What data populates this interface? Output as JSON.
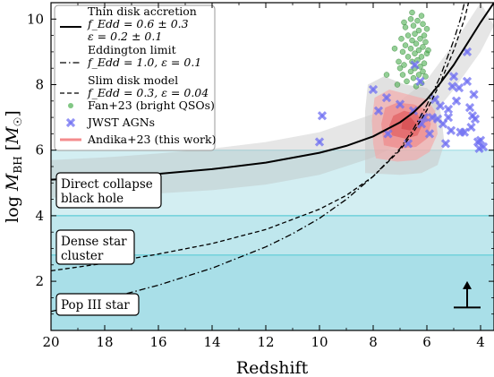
{
  "chart_data": {
    "type": "line",
    "xlabel": "Redshift",
    "ylabel": "log M_BH [M_☉]",
    "xlim": [
      20,
      3.5
    ],
    "ylim": [
      0.5,
      10.5
    ],
    "x_ticks": [
      20,
      18,
      16,
      14,
      12,
      10,
      8,
      6,
      4
    ],
    "y_ticks": [
      2,
      4,
      6,
      8,
      10
    ],
    "grid": false,
    "legend_position": "top-left",
    "legend": [
      {
        "key": "thin",
        "label": "Thin disk accretion",
        "line2": "f_Edd = 0.6 ± 0.3",
        "line3": "ε = 0.2 ± 0.1",
        "style": "solid"
      },
      {
        "key": "edd",
        "label": "Eddington limit",
        "line2": "f_Edd = 1.0, ε = 0.1",
        "style": "dashdot"
      },
      {
        "key": "slim",
        "label": "Slim disk model",
        "line2": "f_Edd = 0.3, ε = 0.04",
        "style": "dashed"
      },
      {
        "key": "fan",
        "label": "Fan+23 (bright QSOs)",
        "style": "green-dot"
      },
      {
        "key": "jwst",
        "label": "JWST AGNs",
        "style": "blue-cross"
      },
      {
        "key": "andika",
        "label": "Andika+23 (this work)",
        "style": "red-band"
      }
    ],
    "seed_regions": [
      {
        "label": "Direct collapse black hole",
        "line1": "Direct collapse",
        "line2": "black hole",
        "y_range": [
          4,
          6
        ],
        "color": "#d3eef2"
      },
      {
        "label": "Dense star cluster",
        "line1": "Dense star",
        "line2": "cluster",
        "y_range": [
          2.8,
          4
        ],
        "color": "#bfe7ed"
      },
      {
        "label": "Pop III star",
        "line1": "Pop III star",
        "line2": "",
        "y_range": [
          0.5,
          2.8
        ],
        "color": "#a9dfe8"
      }
    ],
    "series": [
      {
        "name": "Thin disk accretion",
        "style": "solid",
        "points": [
          [
            20,
            5.1
          ],
          [
            18,
            5.18
          ],
          [
            16,
            5.28
          ],
          [
            14,
            5.42
          ],
          [
            12,
            5.62
          ],
          [
            10,
            5.92
          ],
          [
            9,
            6.13
          ],
          [
            8,
            6.42
          ],
          [
            7,
            6.85
          ],
          [
            6.5,
            7.15
          ],
          [
            6,
            7.55
          ],
          [
            5.5,
            8.05
          ],
          [
            5,
            8.6
          ],
          [
            4.5,
            9.25
          ],
          [
            4,
            9.9
          ],
          [
            3.5,
            10.5
          ]
        ]
      },
      {
        "name": "Eddington limit",
        "style": "dashdot",
        "points": [
          [
            20,
            1.08
          ],
          [
            18,
            1.45
          ],
          [
            16,
            1.88
          ],
          [
            14,
            2.4
          ],
          [
            12,
            3.05
          ],
          [
            11,
            3.45
          ],
          [
            10,
            3.92
          ],
          [
            9,
            4.5
          ],
          [
            8,
            5.2
          ],
          [
            7,
            6.05
          ],
          [
            6.5,
            6.65
          ],
          [
            6,
            7.38
          ],
          [
            5.5,
            8.25
          ],
          [
            5,
            9.35
          ],
          [
            4.75,
            10.0
          ],
          [
            4.6,
            10.5
          ]
        ]
      },
      {
        "name": "Slim disk model",
        "style": "dashed",
        "points": [
          [
            20,
            2.32
          ],
          [
            18,
            2.55
          ],
          [
            16,
            2.83
          ],
          [
            14,
            3.15
          ],
          [
            12,
            3.58
          ],
          [
            10,
            4.2
          ],
          [
            9,
            4.62
          ],
          [
            8,
            5.2
          ],
          [
            7,
            6.0
          ],
          [
            6.5,
            6.55
          ],
          [
            6,
            7.22
          ],
          [
            5.5,
            8.05
          ],
          [
            5,
            9.05
          ],
          [
            4.6,
            10.0
          ],
          [
            4.45,
            10.5
          ]
        ]
      }
    ],
    "thin_band": {
      "upper": [
        [
          20,
          5.7
        ],
        [
          18,
          5.78
        ],
        [
          16,
          5.9
        ],
        [
          14,
          6.05
        ],
        [
          12,
          6.25
        ],
        [
          10,
          6.55
        ],
        [
          8,
          7.1
        ],
        [
          7,
          7.5
        ],
        [
          6,
          8.15
        ],
        [
          5,
          9.25
        ],
        [
          4,
          10.5
        ]
      ],
      "lower": [
        [
          20,
          4.55
        ],
        [
          18,
          4.6
        ],
        [
          16,
          4.68
        ],
        [
          14,
          4.78
        ],
        [
          12,
          4.95
        ],
        [
          10,
          5.25
        ],
        [
          8,
          5.78
        ],
        [
          7,
          6.2
        ],
        [
          6,
          6.85
        ],
        [
          5,
          7.85
        ],
        [
          4,
          9.0
        ],
        [
          3.5,
          9.8
        ]
      ]
    },
    "fan_points": [
      [
        6.2,
        10.1
      ],
      [
        6.35,
        9.95
      ],
      [
        6.6,
        10.0
      ],
      [
        6.15,
        9.85
      ],
      [
        6.5,
        9.8
      ],
      [
        6.8,
        9.75
      ],
      [
        6.3,
        9.65
      ],
      [
        6.45,
        9.55
      ],
      [
        6.1,
        9.5
      ],
      [
        6.7,
        9.5
      ],
      [
        6.25,
        9.4
      ],
      [
        6.55,
        9.35
      ],
      [
        6.05,
        9.3
      ],
      [
        6.4,
        9.25
      ],
      [
        6.8,
        9.2
      ],
      [
        6.15,
        9.15
      ],
      [
        6.6,
        9.1
      ],
      [
        6.3,
        9.05
      ],
      [
        6.9,
        9.0
      ],
      [
        6.45,
        8.95
      ],
      [
        6.0,
        8.95
      ],
      [
        6.2,
        8.85
      ],
      [
        6.7,
        8.85
      ],
      [
        6.35,
        8.75
      ],
      [
        6.55,
        8.7
      ],
      [
        6.1,
        8.65
      ],
      [
        6.85,
        8.6
      ],
      [
        6.25,
        8.55
      ],
      [
        6.45,
        8.5
      ],
      [
        7.0,
        8.5
      ],
      [
        6.15,
        8.4
      ],
      [
        6.6,
        8.4
      ],
      [
        6.3,
        8.3
      ],
      [
        6.9,
        8.3
      ],
      [
        6.05,
        8.25
      ],
      [
        6.5,
        8.2
      ],
      [
        6.75,
        8.1
      ],
      [
        6.2,
        8.05
      ],
      [
        7.1,
        8.0
      ],
      [
        6.4,
        7.95
      ],
      [
        6.95,
        9.4
      ],
      [
        7.2,
        9.1
      ],
      [
        6.0,
        9.7
      ],
      [
        7.05,
        8.7
      ],
      [
        7.5,
        8.3
      ],
      [
        6.55,
        10.2
      ],
      [
        5.95,
        9.05
      ],
      [
        6.85,
        9.9
      ]
    ],
    "jwst_points": [
      [
        9.9,
        7.05
      ],
      [
        10.0,
        6.25
      ],
      [
        6.45,
        8.6
      ],
      [
        6.25,
        8.1
      ],
      [
        7.0,
        7.4
      ],
      [
        6.5,
        7.2
      ],
      [
        6.1,
        7.0
      ],
      [
        5.8,
        7.0
      ],
      [
        5.6,
        6.95
      ],
      [
        5.4,
        6.8
      ],
      [
        5.2,
        7.0
      ],
      [
        4.9,
        7.5
      ],
      [
        4.75,
        6.55
      ],
      [
        4.6,
        6.55
      ],
      [
        4.4,
        7.3
      ],
      [
        4.3,
        7.05
      ],
      [
        4.2,
        6.95
      ],
      [
        4.1,
        6.25
      ],
      [
        4.0,
        6.3
      ],
      [
        4.5,
        8.1
      ],
      [
        4.5,
        9.0
      ],
      [
        5.0,
        8.25
      ],
      [
        5.2,
        7.25
      ],
      [
        5.1,
        6.6
      ],
      [
        5.5,
        7.35
      ],
      [
        5.7,
        7.55
      ],
      [
        5.9,
        6.5
      ],
      [
        6.2,
        6.8
      ],
      [
        4.35,
        6.7
      ],
      [
        3.9,
        6.1
      ],
      [
        5.3,
        6.2
      ],
      [
        7.5,
        7.6
      ],
      [
        7.45,
        6.5
      ],
      [
        7.8,
        7.2
      ],
      [
        5.05,
        7.95
      ],
      [
        4.8,
        7.9
      ],
      [
        6.7,
        6.2
      ],
      [
        4.25,
        7.7
      ],
      [
        8.0,
        7.85
      ],
      [
        4.05,
        6.05
      ]
    ],
    "andika_region": {
      "x_range": [
        8.3,
        5.3
      ],
      "y_range": [
        5.2,
        8.3
      ]
    },
    "limit_arrow": {
      "x": 4.5,
      "from_y": 1.2,
      "to_y": 1.95
    }
  }
}
